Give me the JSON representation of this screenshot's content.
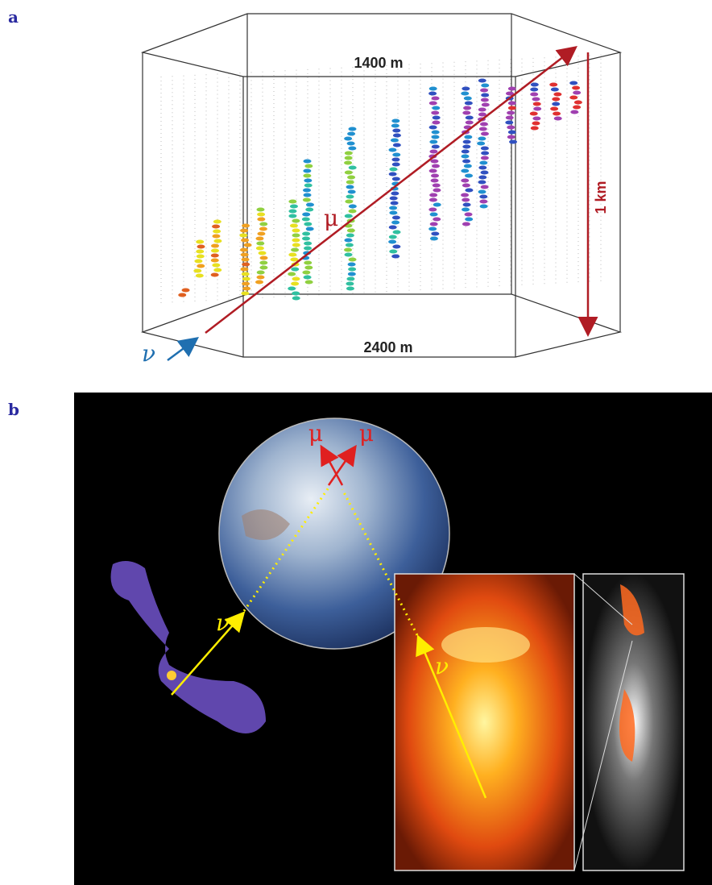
{
  "panel_a": {
    "label": "a",
    "top_width": "1400 m",
    "bottom_width": "2400 m",
    "height": "1 km",
    "muon": "μ",
    "neutrino": "ν"
  },
  "panel_b": {
    "label": "b",
    "muons": [
      "μ",
      "μ"
    ],
    "neutrinos": [
      "ν",
      "ν"
    ]
  }
}
